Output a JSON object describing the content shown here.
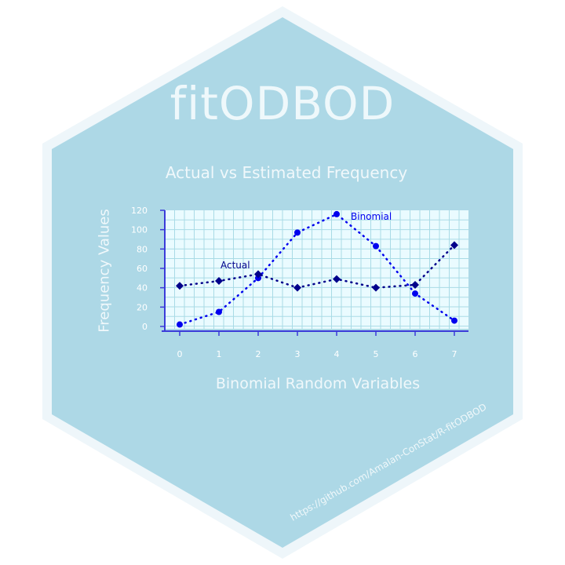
{
  "sticker": {
    "title": "fitODBOD",
    "url": "https://github.com/Amalan-ConStat/R-fitODBOD",
    "colors": {
      "hex_fill": "#add8e6",
      "hex_border": "#eef6fa",
      "plot_bg": "#eafbff",
      "grid": "#a9dbe6",
      "axis": "#3b3bd9",
      "actual_series": "#00008b",
      "binomial_series": "#0000ee",
      "text": "#f0f8fb"
    }
  },
  "chart_data": {
    "type": "line",
    "title": "Actual vs Estimated Frequency",
    "xlabel": "Binomial Random Variables",
    "ylabel": "Frequency Values",
    "x": [
      0,
      1,
      2,
      3,
      4,
      5,
      6,
      7
    ],
    "xlim": [
      0,
      7
    ],
    "ylim": [
      0,
      120
    ],
    "yticks": [
      0,
      20,
      40,
      60,
      80,
      100,
      120
    ],
    "grid": true,
    "series": [
      {
        "name": "Actual",
        "marker": "diamond",
        "line": "dotted",
        "values": [
          42,
          47,
          54,
          40,
          49,
          40,
          43,
          84
        ]
      },
      {
        "name": "Binomial",
        "marker": "circle",
        "line": "dotted",
        "values": [
          2,
          15,
          50,
          97,
          116,
          83,
          34,
          6
        ]
      }
    ]
  }
}
